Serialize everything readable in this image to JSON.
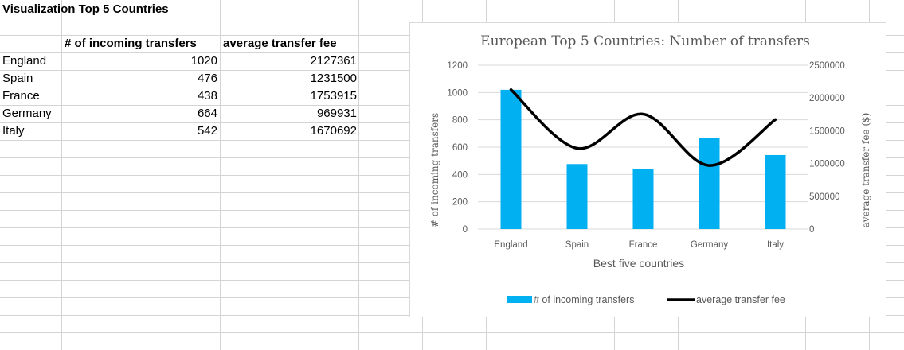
{
  "sheet": {
    "title": "Visualization Top 5 Countries",
    "headers": [
      "# of incoming transfers",
      "average transfer fee"
    ],
    "rows": [
      {
        "country": "England",
        "transfers": "1020",
        "fee": "2127361"
      },
      {
        "country": "Spain",
        "transfers": "476",
        "fee": "1231500"
      },
      {
        "country": "France",
        "transfers": "438",
        "fee": "1753915"
      },
      {
        "country": "Germany",
        "transfers": "664",
        "fee": "969931"
      },
      {
        "country": "Italy",
        "transfers": "542",
        "fee": "1670692"
      }
    ]
  },
  "chart_data": {
    "type": "bar",
    "title": "European Top 5 Countries: Number of  transfers",
    "xlabel": "Best five countries",
    "ylabel": "# of incoming transfers",
    "y2label": "average transfer fee ($)",
    "categories": [
      "England",
      "Spain",
      "France",
      "Germany",
      "Italy"
    ],
    "ylim": [
      0,
      1200
    ],
    "y2lim": [
      0,
      2500000
    ],
    "yticks": [
      "0",
      "200",
      "400",
      "600",
      "800",
      "1000",
      "1200"
    ],
    "y2ticks": [
      "0",
      "500000",
      "1000000",
      "1500000",
      "2000000",
      "2500000"
    ],
    "series": [
      {
        "name": "# of incoming transfers",
        "kind": "bar",
        "axis": "left",
        "color": "#00B0F0",
        "values": [
          1020,
          476,
          438,
          664,
          542
        ]
      },
      {
        "name": "average transfer fee",
        "kind": "line",
        "axis": "right",
        "color": "#000000",
        "values": [
          2127361,
          1231500,
          1753915,
          969931,
          1670692
        ]
      }
    ],
    "legend_position": "bottom",
    "grid": true
  }
}
